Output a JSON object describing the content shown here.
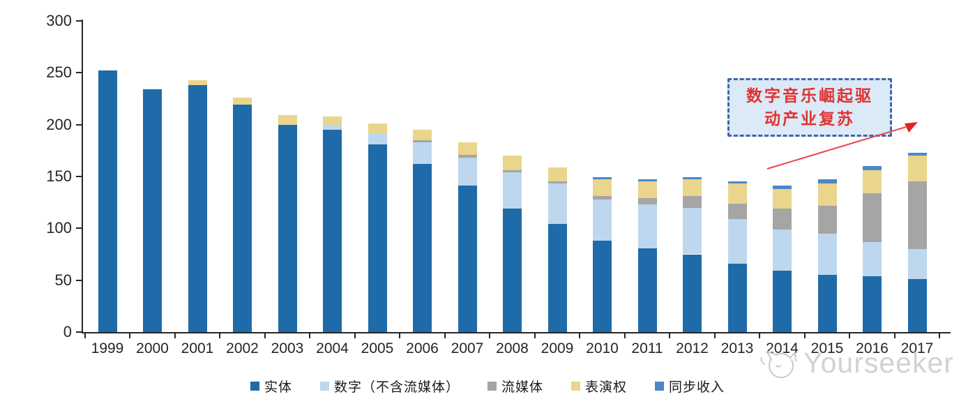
{
  "chart_data": {
    "type": "bar",
    "stacked": true,
    "title": "",
    "xlabel": "",
    "ylabel": "",
    "categories": [
      "1999",
      "2000",
      "2001",
      "2002",
      "2003",
      "2004",
      "2005",
      "2006",
      "2007",
      "2008",
      "2009",
      "2010",
      "2011",
      "2012",
      "2013",
      "2014",
      "2015",
      "2016",
      "2017"
    ],
    "series": [
      {
        "name": "实体",
        "color": "#1f6ba9",
        "values": [
          252,
          234,
          238,
          219,
          200,
          195,
          181,
          162,
          141,
          119,
          104,
          88,
          81,
          75,
          66,
          59,
          55,
          54,
          51
        ]
      },
      {
        "name": "数字（不含流媒体）",
        "color": "#bdd7ee",
        "values": [
          0,
          0,
          0,
          0,
          0,
          5,
          11,
          21,
          27,
          35,
          39,
          40,
          42,
          45,
          43,
          40,
          40,
          33,
          29
        ]
      },
      {
        "name": "流媒体",
        "color": "#a5a5a5",
        "values": [
          0,
          0,
          0,
          0,
          0,
          0,
          0,
          2,
          3,
          2,
          2,
          3,
          6,
          11,
          15,
          20,
          27,
          47,
          65
        ]
      },
      {
        "name": "表演权",
        "color": "#e9d58c",
        "values": [
          0,
          0,
          5,
          7,
          9,
          8,
          9,
          10,
          12,
          14,
          14,
          16,
          16,
          16,
          19,
          19,
          21,
          22,
          25
        ]
      },
      {
        "name": "同步收入",
        "color": "#4c87c8",
        "values": [
          0,
          0,
          0,
          0,
          0,
          0,
          0,
          0,
          0,
          0,
          0,
          2,
          2,
          2,
          2,
          3,
          4,
          4,
          3
        ]
      }
    ],
    "ylim": [
      0,
      300
    ],
    "yticks": [
      0,
      50,
      100,
      150,
      200,
      250,
      300
    ],
    "grid": false,
    "legend_position": "bottom"
  },
  "annotation": {
    "line1": "数字音乐崛起驱",
    "line2": "动产业复苏",
    "text_color": "#e03232",
    "border_color": "#3e66a8",
    "fill_color": "#dce9f6",
    "arrow_color": "#e84545"
  },
  "watermark": {
    "text": "Yourseeker",
    "logo": "cat-face-icon",
    "color": "#d2d2d2"
  }
}
